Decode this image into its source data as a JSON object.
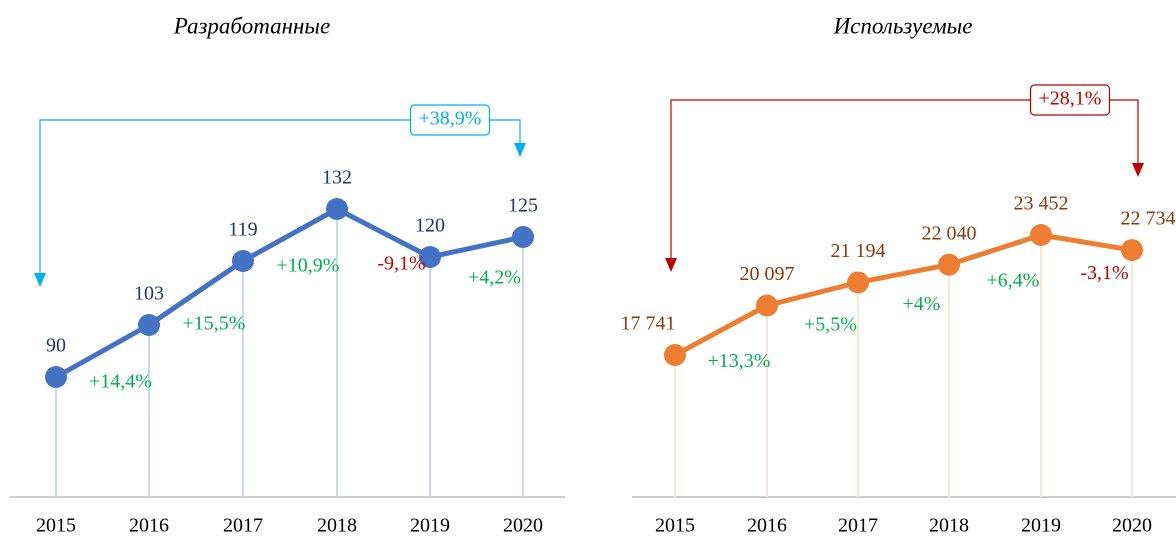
{
  "chart_data": [
    {
      "type": "line",
      "title": "Разработанные",
      "categories": [
        "2015",
        "2016",
        "2017",
        "2018",
        "2019",
        "2020"
      ],
      "values": [
        90,
        103,
        119,
        132,
        120,
        125
      ],
      "color": "#4472c4",
      "label_color": "#1f3864",
      "drop_line_color": "#c9d9ea",
      "changes": [
        "+14,4%",
        "+15,5%",
        "+10,9%",
        "-9,1%",
        "+4,2%"
      ],
      "total_change": "+38,9%",
      "total_color": "#00b0f0",
      "positive_color": "#00b050",
      "negative_color": "#c00000"
    },
    {
      "type": "line",
      "title": "Используемые",
      "categories": [
        "2015",
        "2016",
        "2017",
        "2018",
        "2019",
        "2020"
      ],
      "values": [
        17741,
        20097,
        21194,
        22040,
        23452,
        22734
      ],
      "value_labels": [
        "17 741",
        "20 097",
        "21 194",
        "22 040",
        "23 452",
        "22 734"
      ],
      "color": "#ed7d31",
      "label_color": "#843c0c",
      "drop_line_color": "#fbe5d6",
      "changes": [
        "+13,3%",
        "+5,5%",
        "+4%",
        "+6,4%",
        "-3,1%"
      ],
      "total_change": "+28,1%",
      "total_color": "#c00000",
      "positive_color": "#00b050",
      "negative_color": "#c00000"
    }
  ]
}
